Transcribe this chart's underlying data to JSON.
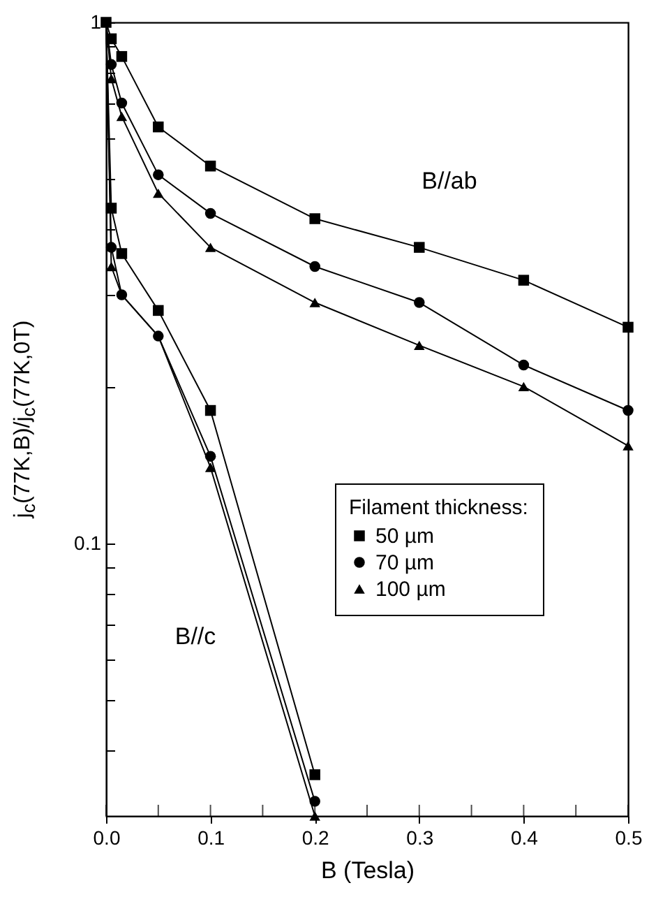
{
  "chart_data": {
    "type": "line",
    "xlabel": "B (Tesla)",
    "ylabel": "j$_{c}$(77K,B)/j$_{c}$(77K,0T)",
    "legend_title": "Filament thickness:",
    "legend": "right",
    "log": "y",
    "xlim": [
      0,
      0.5
    ],
    "ylim": [
      0.03,
      1
    ],
    "xticks": [
      {
        "value": 0,
        "label": "0.0"
      },
      {
        "value": 0.05,
        "label": null
      },
      0.1,
      {
        "value": 0.15,
        "label": null
      },
      0.2,
      {
        "value": 0.25,
        "label": null
      },
      0.3,
      {
        "value": 0.35,
        "label": null
      },
      0.4,
      {
        "value": 0.45,
        "label": null
      },
      0.5
    ],
    "yticks": [
      {
        "value": 0.03,
        "label": null
      },
      {
        "value": 0.04,
        "label": null
      },
      {
        "value": 0.05,
        "label": null
      },
      {
        "value": 0.06,
        "label": null
      },
      {
        "value": 0.07,
        "label": null
      },
      {
        "value": 0.08,
        "label": null
      },
      {
        "value": 0.09,
        "label": null
      },
      0.1,
      {
        "value": 0.2,
        "label": null
      },
      {
        "value": 0.3,
        "label": null
      },
      {
        "value": 0.4,
        "label": null
      },
      {
        "value": 0.5,
        "label": null
      },
      {
        "value": 0.6,
        "label": null
      },
      {
        "value": 0.7,
        "label": null
      },
      {
        "value": 0.8,
        "label": null
      },
      {
        "value": 0.9,
        "label": null
      },
      1
    ],
    "x": [
      0,
      0.005,
      0.015,
      0.05,
      0.1,
      0.2,
      0.3,
      0.4,
      0.5
    ],
    "series": [
      {
        "name": "50 µm",
        "color": "#000000",
        "marker": "square",
        "values": [
          1,
          0.93,
          0.86,
          0.63,
          0.53,
          0.42,
          0.37,
          0.32,
          0.26
        ]
      },
      {
        "name": "70 µm",
        "color": "#000000",
        "marker": "circle",
        "values": [
          1,
          0.83,
          0.7,
          0.51,
          0.43,
          0.34,
          0.29,
          0.22,
          0.18
        ]
      },
      {
        "name": "100 µm",
        "color": "#000000",
        "marker": "triangle",
        "values": [
          1,
          0.78,
          0.66,
          0.47,
          0.37,
          0.29,
          0.24,
          0.2,
          0.154
        ]
      },
      {
        "color": "#000000",
        "marker": "square",
        "x": [
          0,
          0.005,
          0.015,
          0.05,
          0.1,
          0.2
        ],
        "values": [
          1,
          0.44,
          0.36,
          0.28,
          0.18,
          0.036
        ]
      },
      {
        "color": "#000000",
        "marker": "circle",
        "x": [
          0,
          0.005,
          0.015,
          0.05,
          0.1,
          0.2
        ],
        "values": [
          1,
          0.37,
          0.3,
          0.25,
          0.147,
          0.032
        ]
      },
      {
        "color": "#000000",
        "marker": "triangle",
        "x": [
          0,
          0.005,
          0.015,
          0.05,
          0.1,
          0.2
        ],
        "values": [
          1,
          0.34,
          0.3,
          0.25,
          0.14,
          0.03
        ]
      }
    ],
    "annotations": [
      "B//ab",
      "B//c"
    ]
  }
}
